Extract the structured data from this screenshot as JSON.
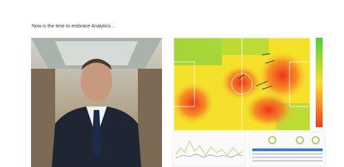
{
  "header": {
    "title": "Now is the time to embrace Analytics..."
  }
}
